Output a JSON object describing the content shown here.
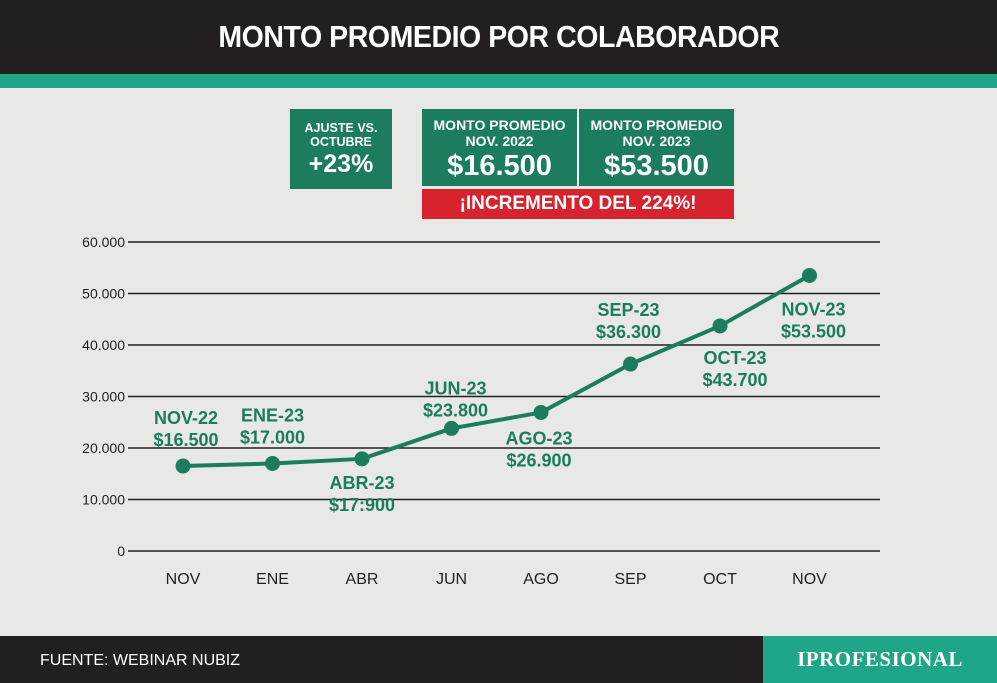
{
  "title": "MONTO PROMEDIO POR COLABORADOR",
  "boxes": {
    "ajuste_line1": "AJUSTE  VS.",
    "ajuste_line2": "OCTUBRE",
    "ajuste_value": "+23%",
    "monto1_line1": "MONTO PROMEDIO",
    "monto1_line2": "NOV. 2022",
    "monto1_value": "$16.500",
    "monto2_line1": "MONTO PROMEDIO",
    "monto2_line2": "NOV. 2023",
    "monto2_value": "$53.500",
    "increment": "¡INCREMENTO DEL 224%!"
  },
  "footer": {
    "source": "FUENTE: WEBINAR NUBIZ",
    "logo": "IPROFESIONAL"
  },
  "colors": {
    "header_bg": "#231f20",
    "teal": "#1fa588",
    "green": "#1b7c5e",
    "red": "#d7232d",
    "line": "#1b7c5e",
    "background": "#e8e8e6"
  },
  "chart_data": {
    "type": "line",
    "title": "MONTO PROMEDIO POR COLABORADOR",
    "categories": [
      "NOV",
      "ENE",
      "ABR",
      "JUN",
      "AGO",
      "SEP",
      "OCT",
      "NOV"
    ],
    "yticks": [
      "0",
      "10.000",
      "20.000",
      "30.000",
      "40.000",
      "50.000",
      "60.000"
    ],
    "ytick_values": [
      0,
      10000,
      20000,
      30000,
      40000,
      50000,
      60000
    ],
    "ylim": [
      0,
      60000
    ],
    "grid": true,
    "series": [
      {
        "values": [
          16500,
          17000,
          17900,
          23800,
          26900,
          36300,
          43700,
          53500
        ],
        "labels": [
          {
            "name": "NOV-22",
            "value": "$16.500",
            "pos": "above"
          },
          {
            "name": "ENE-23",
            "value": "$17.000",
            "pos": "above"
          },
          {
            "name": "ABR-23",
            "value": "$17:900",
            "pos": "below"
          },
          {
            "name": "JUN-23",
            "value": "$23.800",
            "pos": "above"
          },
          {
            "name": "AGO-23",
            "value": "$26.900",
            "pos": "below"
          },
          {
            "name": "SEP-23",
            "value": "$36.300",
            "pos": "above"
          },
          {
            "name": "OCT-23",
            "value": "$43.700",
            "pos": "below"
          },
          {
            "name": "NOV-23",
            "value": "$53.500",
            "pos": "below"
          }
        ]
      }
    ]
  }
}
